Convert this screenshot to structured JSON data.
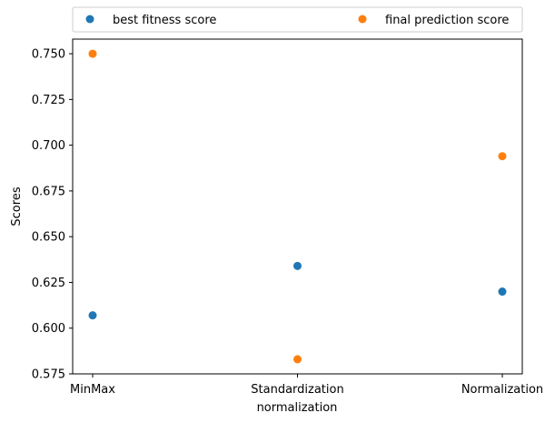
{
  "chart_data": {
    "type": "scatter",
    "title": "",
    "xlabel": "normalization",
    "ylabel": "Scores",
    "categories": [
      "MinMax",
      "Standardization",
      "Normalization"
    ],
    "series": [
      {
        "name": "best fitness score",
        "color": "#1f77b4",
        "values": [
          0.607,
          0.634,
          0.62
        ]
      },
      {
        "name": "final prediction score",
        "color": "#ff7f0e",
        "values": [
          0.75,
          0.583,
          0.694
        ]
      }
    ],
    "ylim": [
      0.575,
      0.758
    ],
    "yticks": [
      0.575,
      0.6,
      0.625,
      0.65,
      0.675,
      0.7,
      0.725,
      0.75
    ],
    "ytick_labels": [
      "0.575",
      "0.600",
      "0.625",
      "0.650",
      "0.675",
      "0.700",
      "0.725",
      "0.750"
    ],
    "grid": false,
    "legend_position": "top, outside plot, two columns"
  }
}
